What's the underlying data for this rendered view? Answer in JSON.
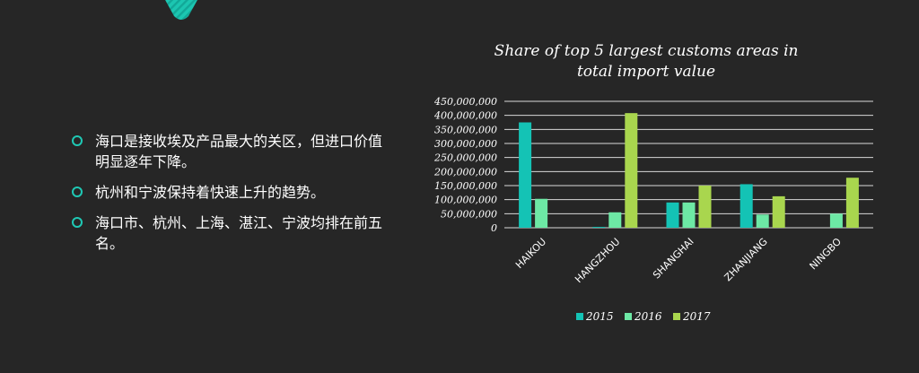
{
  "bullets": [
    "海口是接收埃及产品最大的关区，但进口价值明显逐年下降。",
    "杭州和宁波保持着快速上升的趋势。",
    "海口市、杭州、上海、湛江、宁波均排在前五名。"
  ],
  "colors": {
    "background": "#262626",
    "accent": "#1fc8b4",
    "series_2015": "#14c3b5",
    "series_2016": "#6de8a5",
    "series_2017": "#a9d64e"
  },
  "chart_data": {
    "type": "bar",
    "title_lines": [
      "Share of top 5 largest customs areas in",
      "total import value"
    ],
    "categories": [
      "HAIKOU",
      "HANGZHOU",
      "SHANGHAI",
      "ZHANJIANG",
      "NINGBO"
    ],
    "series": [
      {
        "name": "2015",
        "values": [
          375000000,
          3000000,
          90000000,
          155000000,
          0
        ]
      },
      {
        "name": "2016",
        "values": [
          103000000,
          55000000,
          90000000,
          47000000,
          50000000
        ]
      },
      {
        "name": "2017",
        "values": [
          0,
          408000000,
          150000000,
          112000000,
          178000000
        ]
      }
    ],
    "ylim": [
      0,
      450000000
    ],
    "yticks": [
      "450,000,000",
      "400,000,000",
      "350,000,000",
      "300,000,000",
      "250,000,000",
      "200,000,000",
      "150,000,000",
      "100,000,000",
      "50,000,000",
      "0"
    ],
    "xlabel": "",
    "ylabel": "",
    "grid": true,
    "legend_position": "bottom"
  }
}
